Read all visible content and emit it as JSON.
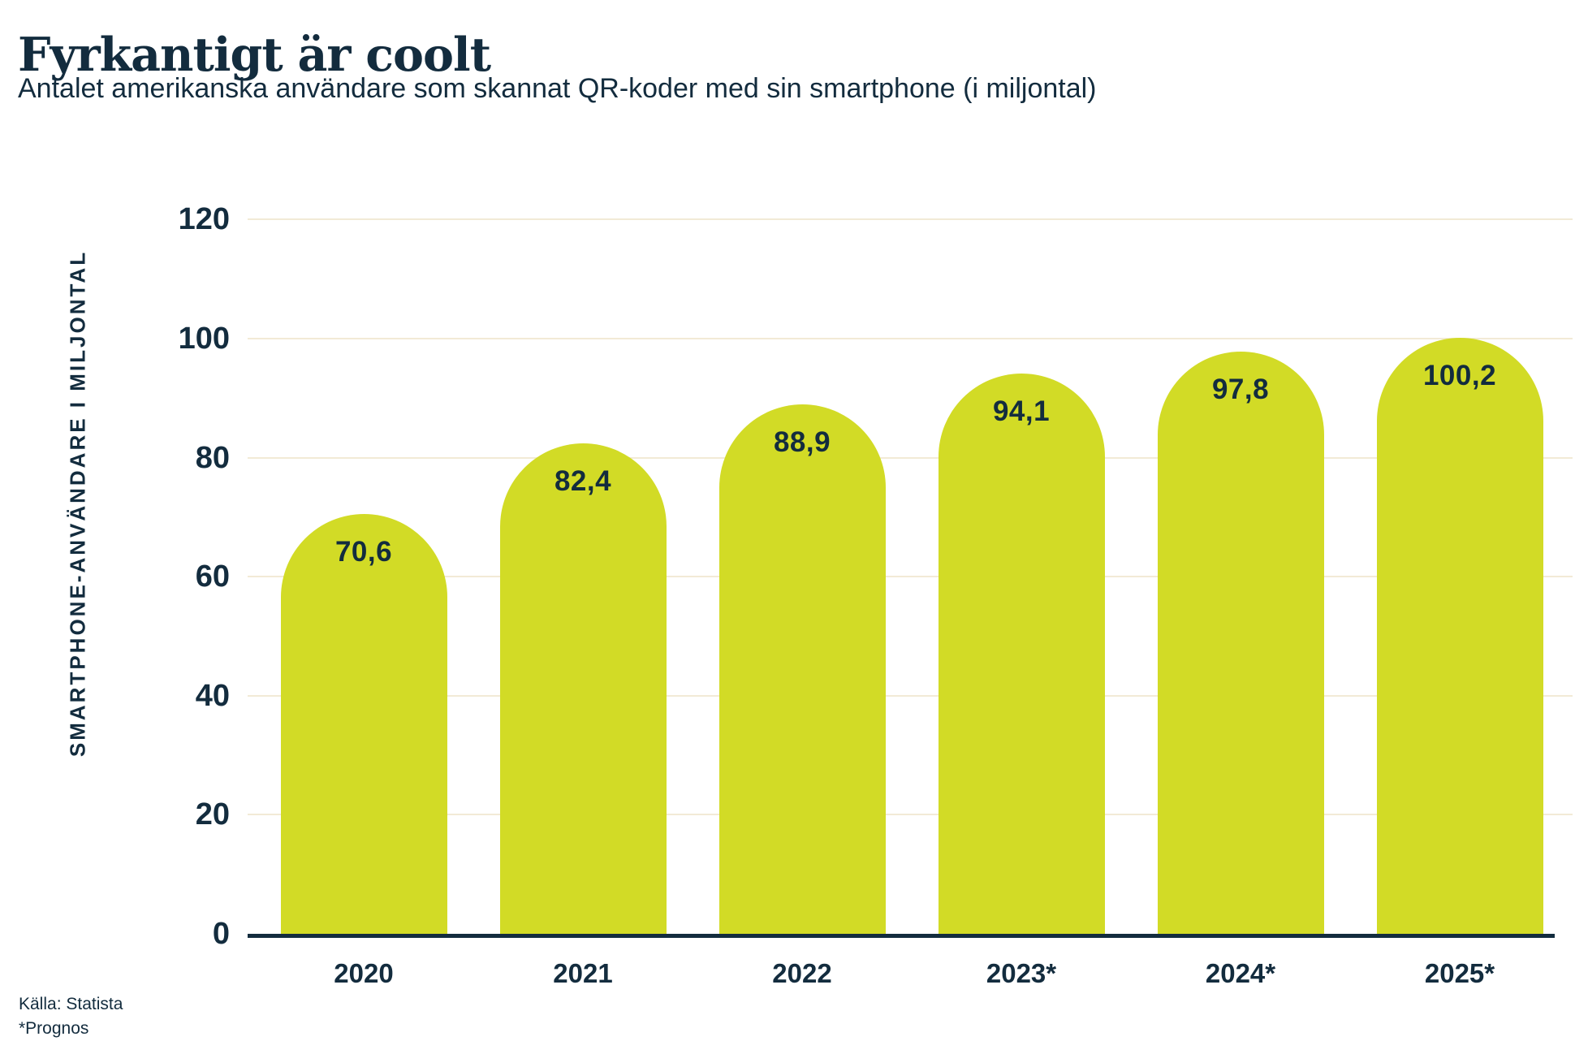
{
  "page": {
    "title": "Fyrkantigt är coolt",
    "subtitle": "Antalet amerikanska användare som skannat QR-koder med sin smartphone (i miljontal)",
    "source": "Källa: Statista",
    "footnote": "*Prognos"
  },
  "colors": {
    "bar": "#d2db26",
    "text": "#132c3e",
    "gridline": "#f2ead6",
    "axis": "#132c3e",
    "background": "#ffffff"
  },
  "chart_data": {
    "type": "bar",
    "categories": [
      "2020",
      "2021",
      "2022",
      "2023*",
      "2024*",
      "2025*"
    ],
    "values": [
      70.6,
      82.4,
      88.9,
      94.1,
      97.8,
      100.2
    ],
    "value_labels": [
      "70,6",
      "82,4",
      "88,9",
      "94,1",
      "97,8",
      "100,2"
    ],
    "title": "Fyrkantigt är coolt",
    "subtitle": "Antalet amerikanska användare som skannat QR-koder med sin smartphone (i miljontal)",
    "xlabel": "",
    "ylabel": "SMARTPHONE-ANVÄNDARE I MILJONTAL",
    "ylim": [
      0,
      120
    ],
    "yticks": [
      0,
      20,
      40,
      60,
      80,
      100,
      120
    ],
    "grid": true,
    "legend": false,
    "bar_shape": "rounded-top",
    "value_label_position": "inside-top"
  }
}
